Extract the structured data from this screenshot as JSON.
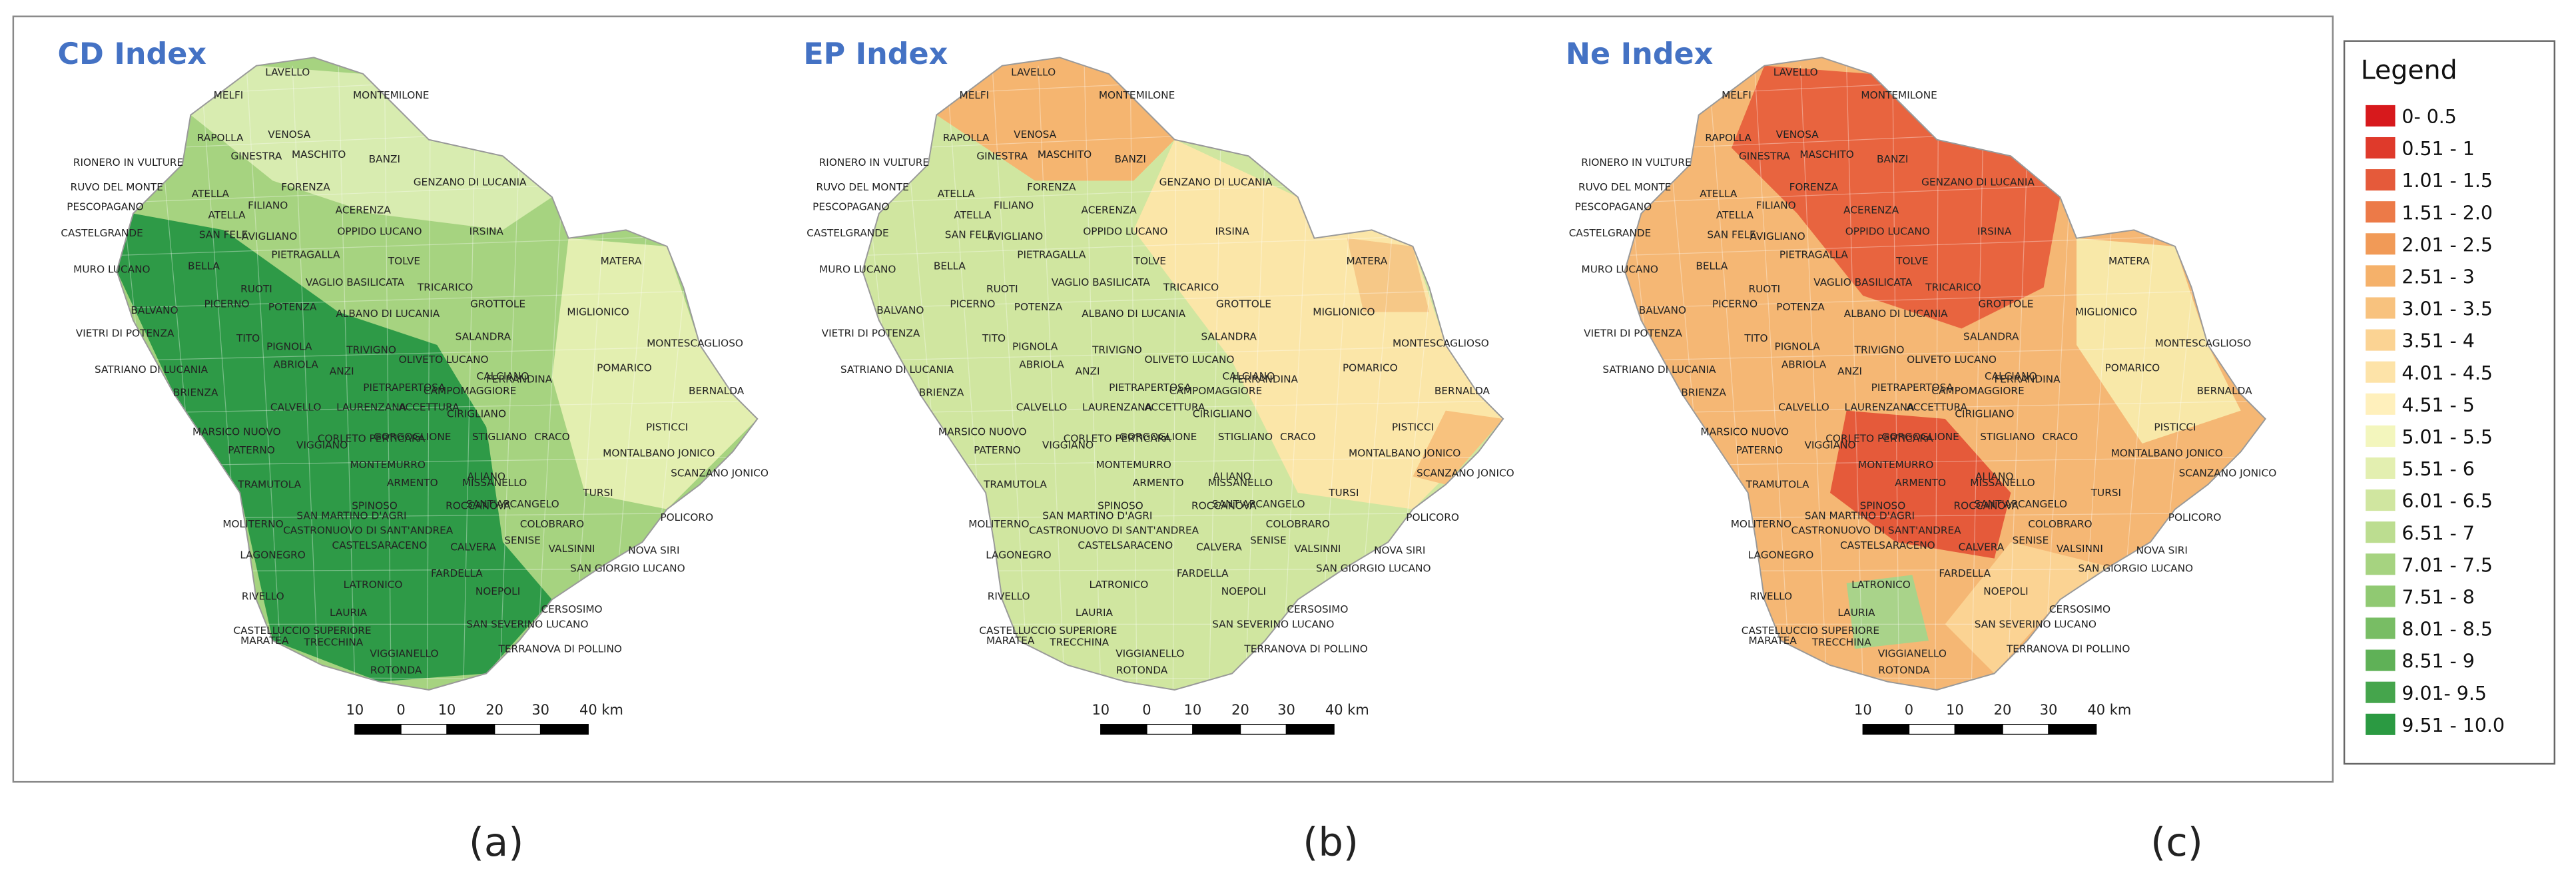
{
  "maps": [
    {
      "title": "CD Index",
      "panel": "(a)"
    },
    {
      "title": "EP Index",
      "panel": "(b)"
    },
    {
      "title": "Ne Index",
      "panel": "(c)"
    }
  ],
  "places": [
    "LAVELLO",
    "MELFI",
    "MONTEMILONE",
    "RAPOLLA",
    "VENOSA",
    "GINESTRA",
    "MASCHITO",
    "BANZI",
    "RIONERO IN VULTURE",
    "GENZANO DI LUCANIA",
    "RUVO DEL MONTE",
    "ATELLA",
    "FORENZA",
    "PESCOPAGANO",
    "FILIANO",
    "ATELLA",
    "ACERENZA",
    "CASTELGRANDE",
    "SAN FELE",
    "AVIGLIANO",
    "OPPIDO LUCANO",
    "IRSINA",
    "PIETRAGALLA",
    "TOLVE",
    "MATERA",
    "MURO LUCANO",
    "BELLA",
    "VAGLIO BASILICATA",
    "RUOTI",
    "TRICARICO",
    "POTENZA",
    "BALVANO",
    "PICERNO",
    "ALBANO DI LUCANIA",
    "GROTTOLE",
    "MIGLIONICO",
    "VIETRI DI POTENZA",
    "TITO",
    "SALANDRA",
    "MONTESCAGLIOSO",
    "PIGNOLA",
    "TRIVIGNO",
    "ABRIOLA",
    "OLIVETO LUCANO",
    "SATRIANO DI LUCANIA",
    "ANZI",
    "POMARICO",
    "FERRANDINA",
    "PIETRAPERTOSA",
    "BRIENZA",
    "BERNALDA",
    "CALVELLO",
    "LAURENZANA",
    "CIRIGLIANO",
    "PISTICCI",
    "MARSICO NUOVO",
    "GORGOGLIONE",
    "STIGLIANO",
    "CRACO",
    "PATERNO",
    "VIGGIANO",
    "MONTALBANO JONICO",
    "SCANZANO JONICO",
    "MONTEMURRO",
    "ARMENTO",
    "ALIANO",
    "TRAMUTOLA",
    "TURSI",
    "SANT'ARCANGELO",
    "SAN MARTINO D'AGRI",
    "COLOBRARO",
    "POLICORO",
    "CASTRONUOVO DI SANT'ANDREA",
    "CASTELSARACENO",
    "VALSINNI",
    "NOVA SIRI",
    "LAGONEGRO",
    "CALVERA",
    "FARDELLA",
    "SAN GIORGIO LUCANO",
    "LATRONICO",
    "NOEPOLI",
    "RIVELLO",
    "CERSOSIMO",
    "LAURIA",
    "SAN SEVERINO LUCANO",
    "MARATEA",
    "TRECCHINA",
    "TERRANOVA DI POLLINO",
    "VIGGIANELLO",
    "ROTONDA",
    "ROCCANOVA",
    "SENISE",
    "MISSANELLO",
    "CALCIANO",
    "CAMPOMAGGIORE",
    "ACCETTURA",
    "CORLETO PERTICARA",
    "MOLITERNO",
    "SPINOSO",
    "CASTELLUCCIO SUPERIORE"
  ],
  "scale_bar": [
    "10",
    "0",
    "10",
    "20",
    "30",
    "40 km"
  ],
  "legend": {
    "title": "Legend",
    "items": [
      {
        "label": "0- 0.5",
        "color": "#d7191c"
      },
      {
        "label": "0.51 - 1",
        "color": "#df3a2b"
      },
      {
        "label": "1.01 - 1.5",
        "color": "#e55a3a"
      },
      {
        "label": "1.51 - 2.0",
        "color": "#ec7a48"
      },
      {
        "label": "2.01 - 2.5",
        "color": "#f19a57"
      },
      {
        "label": "2.51 - 3",
        "color": "#f5b16a"
      },
      {
        "label": "3.01 - 3.5",
        "color": "#f8c27e"
      },
      {
        "label": "3.51 - 4",
        "color": "#fbd393"
      },
      {
        "label": "4.01 - 4.5",
        "color": "#fde3a8"
      },
      {
        "label": "4.51 - 5",
        "color": "#fff0bc"
      },
      {
        "label": "5.01 - 5.5",
        "color": "#f3f6bd"
      },
      {
        "label": "5.51 - 6",
        "color": "#e3efb0"
      },
      {
        "label": "6.01 - 6.5",
        "color": "#d0e6a0"
      },
      {
        "label": "6.51 - 7",
        "color": "#bcdd90"
      },
      {
        "label": "7.01 - 7.5",
        "color": "#a6d380"
      },
      {
        "label": "7.51 - 8",
        "color": "#90c972"
      },
      {
        "label": "8.01 - 8.5",
        "color": "#78bd64"
      },
      {
        "label": "8.51 - 9",
        "color": "#5fb157"
      },
      {
        "label": "9.01- 9.5",
        "color": "#45a54c"
      },
      {
        "label": "9.51 - 10.0",
        "color": "#2b9a42"
      }
    ]
  }
}
